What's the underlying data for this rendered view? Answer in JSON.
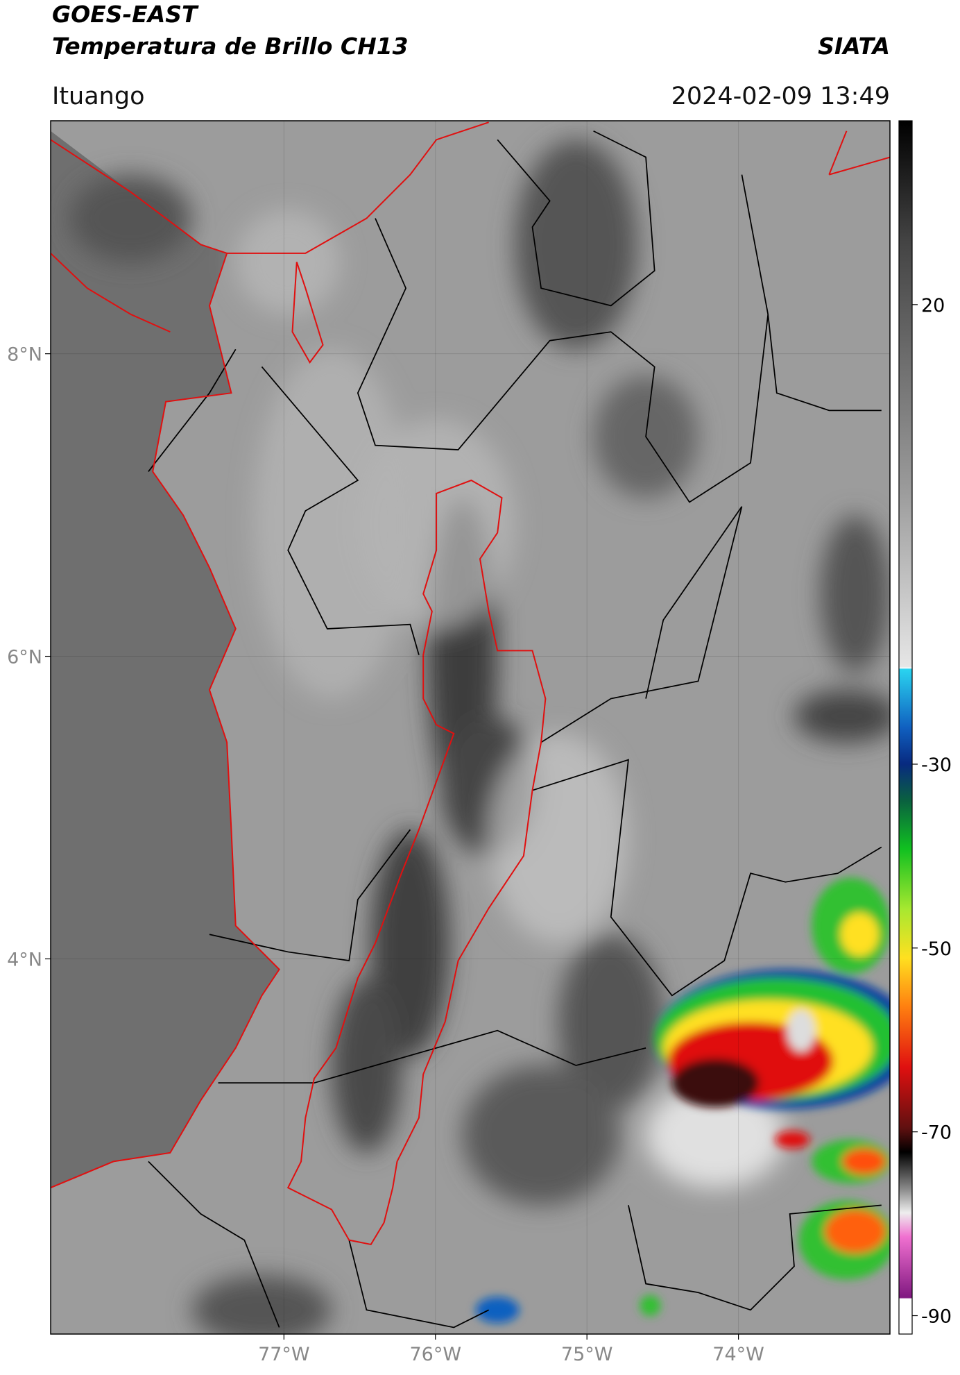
{
  "header": {
    "title": "GOES-EAST",
    "subtitle": "Temperatura de Brillo CH13",
    "source": "SIATA",
    "region": "Ituango",
    "datetime": "2024-02-09 13:49"
  },
  "map": {
    "xlim": [
      -78.54,
      -73.0
    ],
    "ylim": [
      1.52,
      9.54
    ],
    "xticks": [
      {
        "value": -77,
        "label": "77°W"
      },
      {
        "value": -76,
        "label": "76°W"
      },
      {
        "value": -75,
        "label": "75°W"
      },
      {
        "value": -74,
        "label": "74°W"
      }
    ],
    "yticks": [
      {
        "value": 8,
        "label": "8°N"
      },
      {
        "value": 6,
        "label": "6°N"
      },
      {
        "value": 4,
        "label": "4°N"
      }
    ]
  },
  "colorbar": {
    "lim": [
      -92,
      40
    ],
    "ticks": [
      20,
      -30,
      -50,
      -70,
      -90
    ]
  }
}
